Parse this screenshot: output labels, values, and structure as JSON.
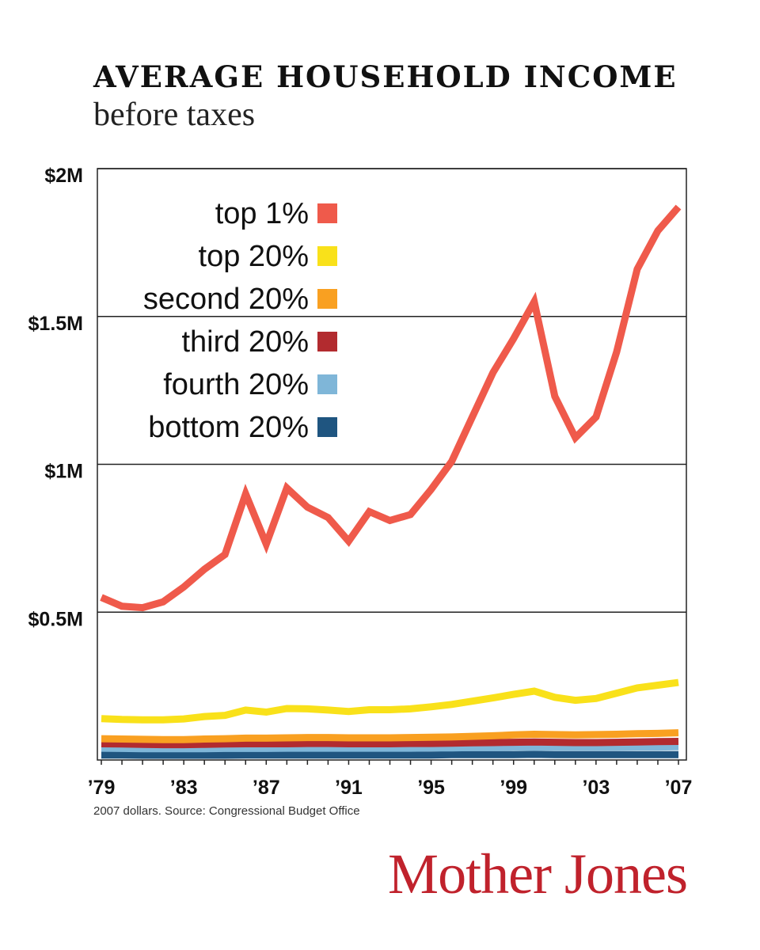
{
  "chart_data": {
    "type": "line",
    "title": "AVERAGE HOUSEHOLD INCOME",
    "subtitle": "before taxes",
    "ylim": [
      0,
      2000000
    ],
    "xlim": [
      1979,
      2007
    ],
    "y_ticks": [
      {
        "value": 2000000,
        "label": "$2M"
      },
      {
        "value": 1500000,
        "label": "$1.5M"
      },
      {
        "value": 1000000,
        "label": "$1M"
      },
      {
        "value": 500000,
        "label": "$0.5M"
      }
    ],
    "x_ticks": [
      {
        "value": 1979,
        "label": "’79"
      },
      {
        "value": 1983,
        "label": "’83"
      },
      {
        "value": 1987,
        "label": "’87"
      },
      {
        "value": 1991,
        "label": "’91"
      },
      {
        "value": 1995,
        "label": "’95"
      },
      {
        "value": 1999,
        "label": "’99"
      },
      {
        "value": 2003,
        "label": "’03"
      },
      {
        "value": 2007,
        "label": "’07"
      }
    ],
    "grid": "horizontal",
    "legend_position": "top-left",
    "x": [
      1979,
      1980,
      1981,
      1982,
      1983,
      1984,
      1985,
      1986,
      1987,
      1988,
      1989,
      1990,
      1991,
      1992,
      1993,
      1994,
      1995,
      1996,
      1997,
      1998,
      1999,
      2000,
      2001,
      2002,
      2003,
      2004,
      2005,
      2006,
      2007
    ],
    "series": [
      {
        "name": "top 1%",
        "color": "#ef5a4b",
        "values": [
          550000,
          520000,
          515000,
          535000,
          585000,
          645000,
          695000,
          900000,
          730000,
          920000,
          855000,
          820000,
          740000,
          840000,
          810000,
          830000,
          915000,
          1010000,
          1160000,
          1310000,
          1425000,
          1550000,
          1230000,
          1090000,
          1160000,
          1380000,
          1660000,
          1790000,
          1870000
        ]
      },
      {
        "name": "top 20%",
        "color": "#f9e11a",
        "values": [
          140000,
          137000,
          136000,
          136000,
          139000,
          147000,
          151000,
          169000,
          162000,
          174000,
          173000,
          169000,
          164000,
          170000,
          170000,
          173000,
          180000,
          188000,
          199000,
          210000,
          222000,
          233000,
          212000,
          202000,
          208000,
          226000,
          244000,
          253000,
          262000
        ]
      },
      {
        "name": "second 20%",
        "color": "#f9a021",
        "values": [
          72000,
          71000,
          70000,
          69000,
          69000,
          71000,
          72000,
          74000,
          74000,
          75000,
          76000,
          76000,
          75000,
          75000,
          75000,
          76000,
          77000,
          78000,
          80000,
          82000,
          85000,
          87000,
          86000,
          85000,
          86000,
          87000,
          89000,
          90000,
          92000
        ]
      },
      {
        "name": "third 20%",
        "color": "#b22b2f",
        "values": [
          55000,
          54000,
          53000,
          52000,
          52000,
          53000,
          54000,
          55000,
          55000,
          55000,
          56000,
          56000,
          55000,
          55000,
          55000,
          56000,
          56000,
          57000,
          58000,
          59000,
          60000,
          61000,
          60000,
          59000,
          59000,
          60000,
          61000,
          62000,
          63000
        ]
      },
      {
        "name": "fourth 20%",
        "color": "#7fb6d8",
        "values": [
          40000,
          39000,
          38000,
          38000,
          38000,
          38000,
          39000,
          39000,
          39000,
          40000,
          40000,
          40000,
          40000,
          40000,
          40000,
          40000,
          41000,
          41000,
          42000,
          42000,
          43000,
          44000,
          43000,
          43000,
          43000,
          43000,
          44000,
          44000,
          45000
        ]
      },
      {
        "name": "bottom 20%",
        "color": "#1f5580",
        "values": [
          17000,
          17000,
          16000,
          16000,
          16000,
          16000,
          16000,
          17000,
          17000,
          17000,
          17000,
          17000,
          17000,
          17000,
          17000,
          17000,
          17000,
          18000,
          18000,
          18000,
          18000,
          19000,
          18000,
          18000,
          18000,
          18000,
          18000,
          18000,
          18000
        ]
      }
    ],
    "source_note": "2007 dollars. Source: Congressional Budget Office"
  },
  "brand": {
    "name": "Mother Jones",
    "color": "#c0222c"
  }
}
